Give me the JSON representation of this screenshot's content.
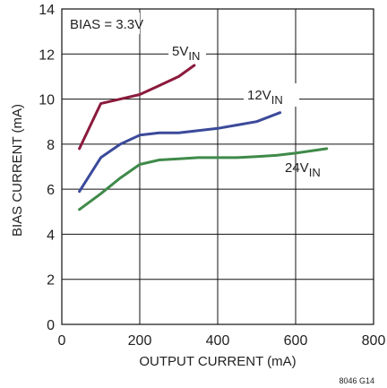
{
  "chart_data": {
    "type": "line",
    "xlabel": "OUTPUT CURRENT (mA)",
    "ylabel": "BIAS CURRENT (mA)",
    "xlim": [
      0,
      800
    ],
    "ylim": [
      0,
      14
    ],
    "x_ticks": [
      0,
      200,
      400,
      600,
      800
    ],
    "y_ticks": [
      0,
      2,
      4,
      6,
      8,
      10,
      12,
      14
    ],
    "x_tick_labels": [
      "0",
      "200",
      "400",
      "600",
      "800"
    ],
    "y_tick_labels": [
      "0",
      "2",
      "4",
      "6",
      "8",
      "10",
      "12",
      "14"
    ],
    "grid": true,
    "annotation": "BIAS = 3.3V",
    "figure_id": "8046 G14",
    "series": [
      {
        "name": "5VIN",
        "label_main": "5V",
        "label_sub": "IN",
        "color": "#8B1A3C",
        "x": [
          45,
          100,
          200,
          250,
          300,
          340
        ],
        "y": [
          7.8,
          9.8,
          10.2,
          10.6,
          11.0,
          11.5
        ]
      },
      {
        "name": "12VIN",
        "label_main": "12V",
        "label_sub": "IN",
        "color": "#3B4A9A",
        "x": [
          45,
          100,
          150,
          200,
          250,
          300,
          350,
          400,
          450,
          500,
          560
        ],
        "y": [
          5.9,
          7.4,
          8.0,
          8.4,
          8.5,
          8.5,
          8.6,
          8.7,
          8.85,
          9.0,
          9.4
        ]
      },
      {
        "name": "24VIN",
        "label_main": "24V",
        "label_sub": "IN",
        "color": "#3F8A4A",
        "x": [
          45,
          100,
          150,
          200,
          250,
          300,
          350,
          400,
          450,
          500,
          550,
          600,
          680
        ],
        "y": [
          5.1,
          5.8,
          6.5,
          7.1,
          7.3,
          7.35,
          7.4,
          7.4,
          7.4,
          7.45,
          7.5,
          7.6,
          7.8
        ]
      }
    ]
  }
}
